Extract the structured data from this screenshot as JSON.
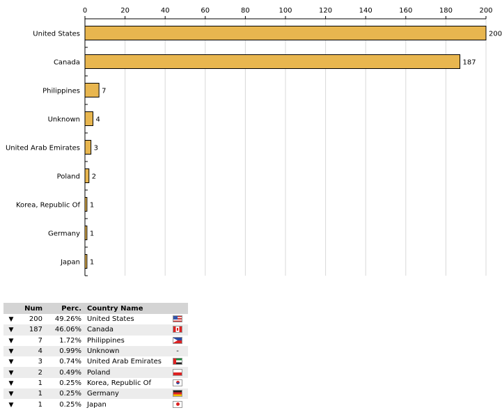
{
  "chart_data": {
    "type": "bar",
    "orientation": "horizontal",
    "categories": [
      "United States",
      "Canada",
      "Philippines",
      "Unknown",
      "United Arab Emirates",
      "Poland",
      "Korea, Republic Of",
      "Germany",
      "Japan"
    ],
    "values": [
      200,
      187,
      7,
      4,
      3,
      2,
      1,
      1,
      1
    ],
    "value_labels": [
      "200",
      "187",
      "7",
      "4",
      "3",
      "2",
      "1",
      "1",
      "1"
    ],
    "xlim": [
      0,
      200
    ],
    "x_ticks": [
      0,
      20,
      40,
      60,
      80,
      100,
      120,
      140,
      160,
      180,
      200
    ],
    "x_tick_labels": [
      "0",
      "20",
      "40",
      "60",
      "80",
      "100",
      "120",
      "140",
      "160",
      "180",
      "200"
    ],
    "axis_position": "top",
    "grid": true,
    "bar_color": "#e8b64f",
    "bar_edge_color": "#000000"
  },
  "table": {
    "headers": {
      "num": "Num",
      "perc": "Perc.",
      "country": "Country Name"
    },
    "rows": [
      {
        "arrow": "▼",
        "num": "200",
        "perc": "49.26%",
        "country": "United States",
        "flag": "us-flag-icon"
      },
      {
        "arrow": "▼",
        "num": "187",
        "perc": "46.06%",
        "country": "Canada",
        "flag": "ca-flag-icon"
      },
      {
        "arrow": "▼",
        "num": "7",
        "perc": "1.72%",
        "country": "Philippines",
        "flag": "ph-flag-icon"
      },
      {
        "arrow": "▼",
        "num": "4",
        "perc": "0.99%",
        "country": "Unknown",
        "flag": "",
        "flag_text": "-"
      },
      {
        "arrow": "▼",
        "num": "3",
        "perc": "0.74%",
        "country": "United Arab Emirates",
        "flag": "ae-flag-icon"
      },
      {
        "arrow": "▼",
        "num": "2",
        "perc": "0.49%",
        "country": "Poland",
        "flag": "pl-flag-icon"
      },
      {
        "arrow": "▼",
        "num": "1",
        "perc": "0.25%",
        "country": "Korea, Republic Of",
        "flag": "kr-flag-icon"
      },
      {
        "arrow": "▼",
        "num": "1",
        "perc": "0.25%",
        "country": "Germany",
        "flag": "de-flag-icon"
      },
      {
        "arrow": "▼",
        "num": "1",
        "perc": "0.25%",
        "country": "Japan",
        "flag": "jp-flag-icon"
      }
    ],
    "header_color": "#d4d4d4",
    "alt_row_color": "#ececec"
  }
}
